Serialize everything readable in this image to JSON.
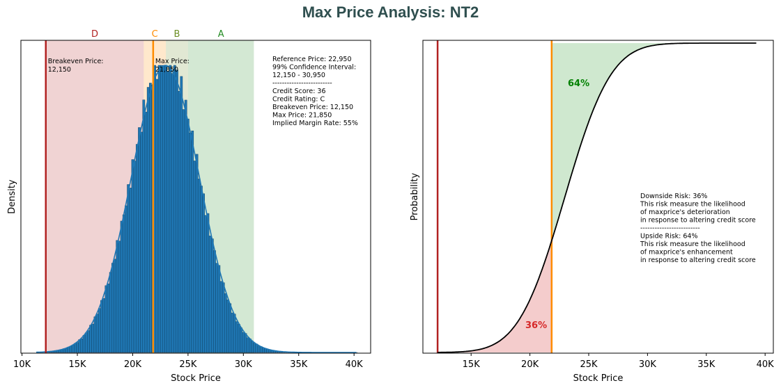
{
  "title": "Max Price Analysis: NT2",
  "colors": {
    "zone_d": "#b22222",
    "zone_c": "#ff8c00",
    "zone_b": "#6b8e23",
    "zone_a": "#228b22",
    "bars": "#1f77b4",
    "breakeven_line": "#b22222",
    "maxprice_line": "#ff8c00",
    "cdf_line": "#000000",
    "downside_fill": "#f4cccc",
    "upside_fill": "#cfe8cf",
    "downside_text": "#d62728",
    "upside_text": "#008000"
  },
  "chart_data": [
    {
      "type": "bar",
      "name_id": "density-histogram",
      "xlabel": "Stock Price",
      "ylabel": "Density",
      "xlim": [
        9900,
        41500
      ],
      "x_ticks": [
        10000,
        15000,
        20000,
        25000,
        30000,
        35000,
        40000
      ],
      "x_tick_labels": [
        "10K",
        "15K",
        "20K",
        "25K",
        "30K",
        "35K",
        "40K"
      ],
      "distribution": {
        "mean": 22950,
        "std": 3100,
        "min": 11300,
        "max": 40200,
        "bin_width": 200
      },
      "zones": [
        {
          "label": "D",
          "from": 12150,
          "to": 21000
        },
        {
          "label": "C",
          "from": 21000,
          "to": 23000
        },
        {
          "label": "B",
          "from": 23000,
          "to": 25000
        },
        {
          "label": "A",
          "from": 25000,
          "to": 30950
        }
      ],
      "breakeven_line": {
        "x": 12150,
        "label_line1": "Breakeven Price:",
        "label_line2": "12,150"
      },
      "maxprice_line": {
        "x": 21850,
        "label_line1": "Max Price:",
        "label_line2": "21,850"
      },
      "info_box": [
        "Reference Price: 22,950",
        "99% Confidence Interval:",
        "12,150 - 30,950",
        "-------------------------",
        "Credit Score: 36",
        "Credit Rating: C",
        "Breakeven Price: 12,150",
        "Max Price: 21,850",
        "Implied Margin Rate: 55%"
      ]
    },
    {
      "type": "line",
      "name_id": "cdf-plot",
      "xlabel": "Stock Price",
      "ylabel": "Probability",
      "xlim": [
        10900,
        40700
      ],
      "x_ticks": [
        15000,
        20000,
        25000,
        30000,
        35000,
        40000
      ],
      "x_tick_labels": [
        "15K",
        "20K",
        "25K",
        "30K",
        "35K",
        "40K"
      ],
      "curve": {
        "mean": 22950,
        "std": 3100,
        "from": 12150,
        "to": 39300
      },
      "breakeven_line": {
        "x": 12150
      },
      "maxprice_line": {
        "x": 21850
      },
      "downside_pct_label": "36%",
      "upside_pct_label": "64%",
      "risk_text": [
        "Downside Risk: 36%",
        "This risk measure the likelihood",
        "of maxprice's deterioration",
        "in response to altering credit score",
        "-------------------------",
        "Upside Risk: 64%",
        "This risk measure the likelihood",
        "of maxprice's enhancement",
        "in response to altering credit score"
      ]
    }
  ]
}
